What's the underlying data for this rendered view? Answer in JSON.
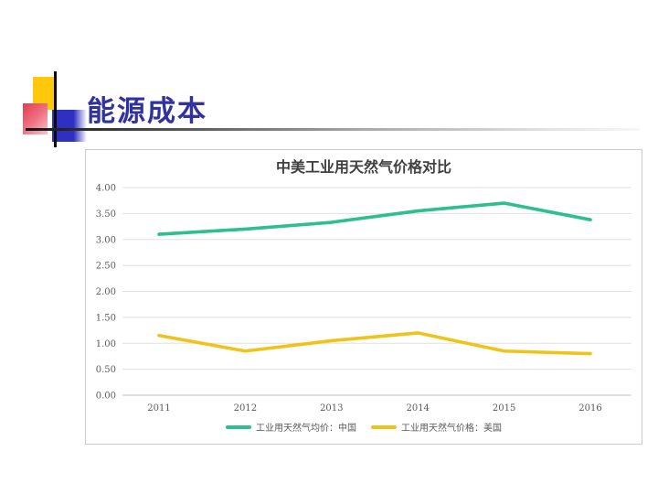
{
  "slide": {
    "title": "能源成本",
    "title_color": "#32329f"
  },
  "decoration": {
    "yellow_square": "#ffc80a",
    "red_square": "#e23b4e",
    "blue_square": "#2f2fc2"
  },
  "chart_data": {
    "type": "line",
    "title": "中美工业用天然气价格对比",
    "categories": [
      "2011",
      "2012",
      "2013",
      "2014",
      "2015",
      "2016"
    ],
    "series": [
      {
        "name": "工业用天然气均价：中国",
        "color": "#2cbf90",
        "values": [
          3.1,
          3.2,
          3.33,
          3.55,
          3.7,
          3.38
        ]
      },
      {
        "name": "工业用天然气价格：美国",
        "color": "#efc319",
        "values": [
          1.15,
          0.85,
          1.05,
          1.2,
          0.85,
          0.8
        ]
      }
    ],
    "xlabel": "",
    "ylabel": "",
    "ylim": [
      0,
      4
    ],
    "y_ticks": [
      "0.00",
      "0.50",
      "1.00",
      "1.50",
      "2.00",
      "2.50",
      "3.00",
      "3.50",
      "4.00"
    ],
    "grid": true,
    "legend_position": "bottom"
  }
}
